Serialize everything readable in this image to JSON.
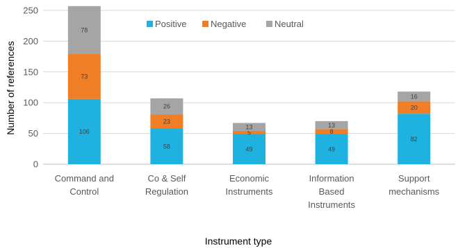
{
  "chart_data": {
    "type": "bar",
    "stacked": true,
    "categories": [
      [
        "Command  and",
        "Control"
      ],
      [
        "Co & Self",
        "Regulation"
      ],
      [
        "Economic",
        "Instruments"
      ],
      [
        "Information",
        "Based",
        "Instruments"
      ],
      [
        "Support",
        "mechanisms"
      ]
    ],
    "series": [
      {
        "name": "Positive",
        "values": [
          106,
          58,
          49,
          49,
          82
        ],
        "color": "#1fb2e1"
      },
      {
        "name": "Negative",
        "values": [
          73,
          23,
          5,
          8,
          20
        ],
        "color": "#f07e26"
      },
      {
        "name": "Neutral",
        "values": [
          78,
          26,
          13,
          13,
          16
        ],
        "color": "#a5a5a5"
      }
    ],
    "xlabel": "Instrument type",
    "ylabel": "Number of references",
    "ylim": [
      0,
      250
    ],
    "yticks": [
      0,
      50,
      100,
      150,
      200,
      250
    ],
    "grid": true,
    "legend": "top-center"
  }
}
